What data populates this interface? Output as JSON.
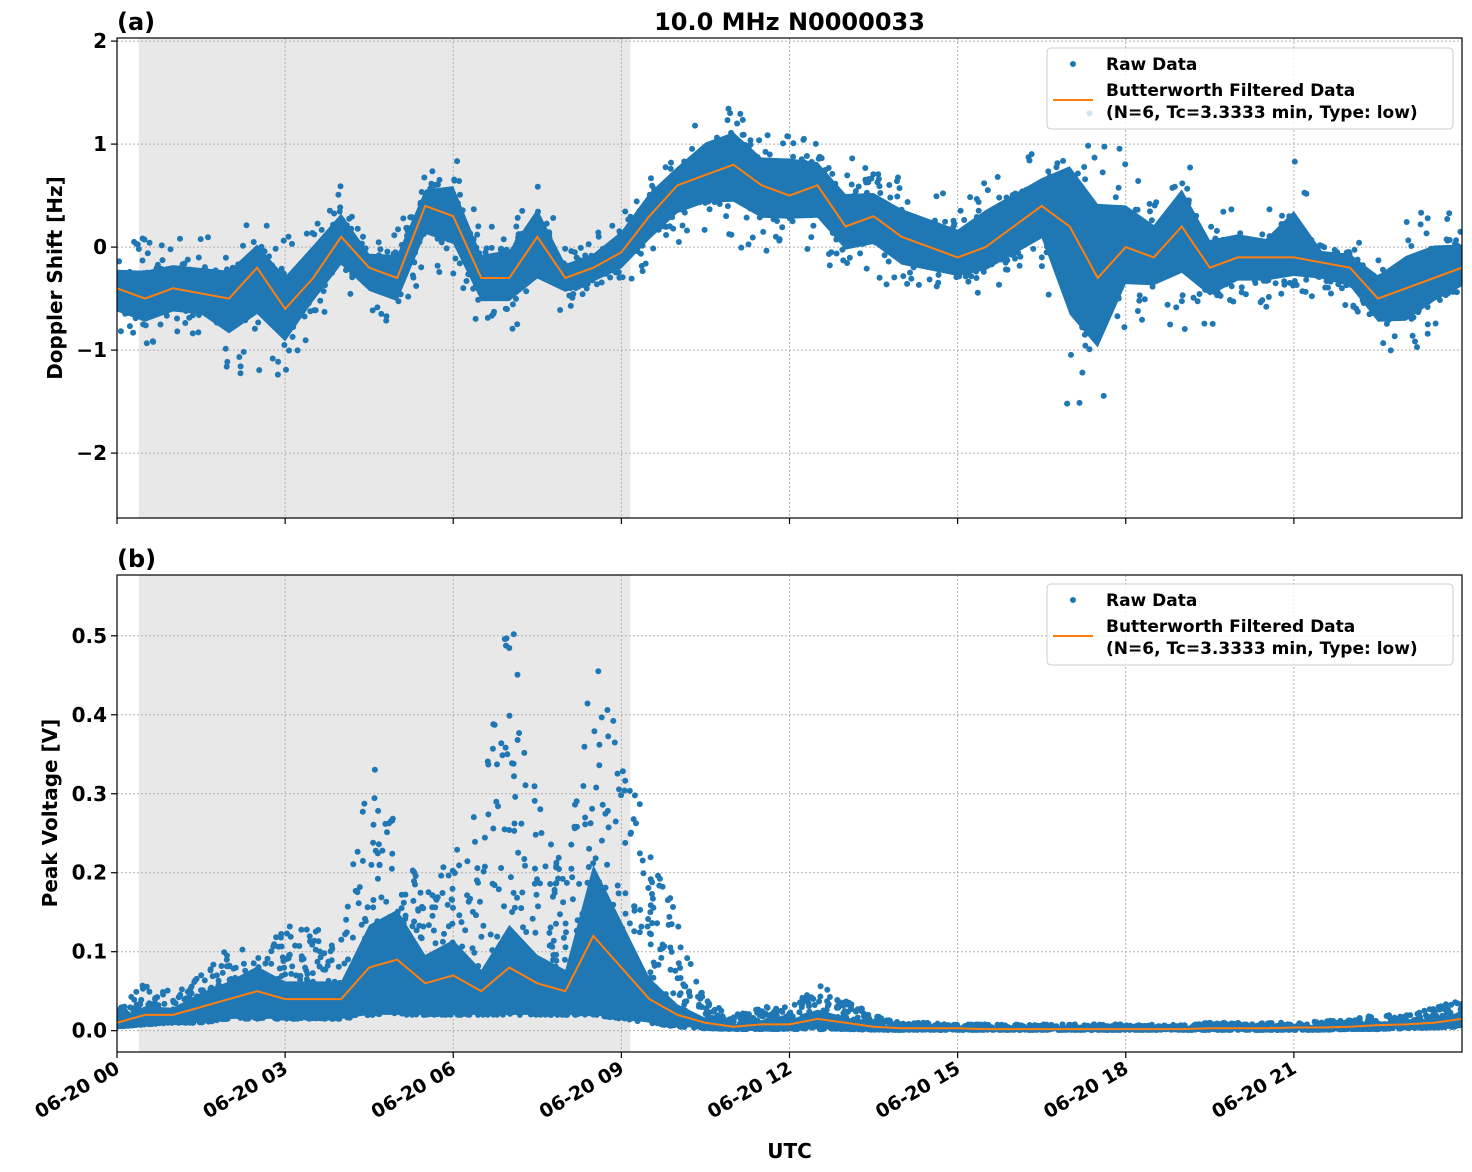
{
  "chart_data": [
    {
      "type": "scatter",
      "panel_label": "(a)",
      "title": "10.0 MHz N0000033",
      "xlabel": "",
      "ylabel": "Doppler Shift [Hz]",
      "xlim_hours": [
        0,
        24
      ],
      "ylim": [
        -2.63,
        2.03
      ],
      "yticks": [
        2,
        1,
        0,
        -1,
        -2
      ],
      "ytick_labels": [
        "2",
        "1",
        "0",
        "−1",
        "−2"
      ],
      "grid": true,
      "legend_placement": "upper-right",
      "shaded_interval_hours": [
        0.39,
        9.16
      ],
      "x_hours": [
        0,
        0.5,
        1,
        1.5,
        2,
        2.5,
        3,
        3.5,
        4,
        4.5,
        5,
        5.5,
        6,
        6.5,
        7,
        7.5,
        8,
        8.5,
        9,
        9.5,
        10,
        10.5,
        11,
        11.5,
        12,
        12.5,
        13,
        13.5,
        14,
        14.5,
        15,
        15.5,
        16,
        16.5,
        17,
        17.5,
        18,
        18.5,
        19,
        19.5,
        20,
        20.5,
        21,
        21.5,
        22,
        22.5,
        23,
        23.5,
        24
      ],
      "series": [
        {
          "name": "Raw Data",
          "kind": "scatter",
          "color": "#1f77b4",
          "low": [
            -0.9,
            -1.0,
            -0.9,
            -0.9,
            -1.25,
            -1.2,
            -1.3,
            -0.8,
            -0.5,
            -0.7,
            -0.8,
            -0.2,
            -0.3,
            -0.8,
            -0.8,
            -0.8,
            -0.6,
            -0.5,
            -0.4,
            -0.2,
            0.0,
            0.1,
            0.0,
            -0.1,
            0.0,
            -0.1,
            -0.3,
            -0.3,
            -0.5,
            -0.5,
            -0.5,
            -0.5,
            -0.4,
            -0.3,
            -1.7,
            -1.8,
            -0.8,
            -0.7,
            -0.8,
            -0.8,
            -0.6,
            -0.6,
            -0.5,
            -0.5,
            -0.6,
            -1.0,
            -1.1,
            -0.8,
            -0.6
          ],
          "high": [
            0.0,
            0.1,
            0.1,
            0.1,
            0.1,
            0.3,
            0.1,
            0.4,
            0.6,
            0.1,
            0.2,
            0.75,
            0.95,
            0.2,
            0.3,
            0.7,
            0.0,
            0.1,
            0.4,
            0.8,
            1.0,
            1.4,
            1.5,
            1.2,
            1.3,
            1.1,
            0.9,
            0.8,
            0.7,
            0.6,
            0.5,
            0.8,
            0.9,
            1.0,
            1.5,
            1.3,
            0.9,
            0.6,
            1.0,
            0.4,
            0.4,
            0.3,
            0.9,
            0.1,
            0.1,
            0.0,
            0.3,
            0.4,
            0.3
          ]
        },
        {
          "name": "Butterworth Filtered Data\n(N=6, Tc=3.3333 min, Type: low)",
          "kind": "line",
          "color": "#ff7f0e",
          "values": [
            -0.4,
            -0.5,
            -0.4,
            -0.45,
            -0.5,
            -0.2,
            -0.6,
            -0.3,
            0.1,
            -0.2,
            -0.3,
            0.4,
            0.3,
            -0.3,
            -0.3,
            0.1,
            -0.3,
            -0.2,
            -0.05,
            0.3,
            0.6,
            0.7,
            0.8,
            0.6,
            0.5,
            0.6,
            0.2,
            0.3,
            0.1,
            0.0,
            -0.1,
            0.0,
            0.2,
            0.4,
            0.2,
            -0.3,
            0.0,
            -0.1,
            0.2,
            -0.2,
            -0.1,
            -0.1,
            -0.1,
            -0.15,
            -0.2,
            -0.5,
            -0.4,
            -0.3,
            -0.2
          ]
        }
      ]
    },
    {
      "type": "scatter",
      "panel_label": "(b)",
      "title": "",
      "xlabel": "UTC",
      "ylabel": "Peak Voltage [V]",
      "xlim_hours": [
        0,
        24
      ],
      "ylim": [
        -0.027,
        0.577
      ],
      "yticks": [
        0.0,
        0.1,
        0.2,
        0.3,
        0.4,
        0.5
      ],
      "ytick_labels": [
        "0.0",
        "0.1",
        "0.2",
        "0.3",
        "0.4",
        "0.5"
      ],
      "xtick_hours": [
        0,
        3,
        6,
        9,
        12,
        15,
        18,
        21
      ],
      "xtick_labels": [
        "06-20 00",
        "06-20 03",
        "06-20 06",
        "06-20 09",
        "06-20 12",
        "06-20 15",
        "06-20 18",
        "06-20 21"
      ],
      "grid": true,
      "legend_placement": "upper-right",
      "shaded_interval_hours": [
        0.39,
        9.16
      ],
      "x_hours": [
        0,
        0.5,
        1,
        1.5,
        2,
        2.5,
        3,
        3.5,
        4,
        4.5,
        5,
        5.5,
        6,
        6.5,
        7,
        7.5,
        8,
        8.5,
        9,
        9.5,
        10,
        10.5,
        11,
        11.5,
        12,
        12.5,
        13,
        13.5,
        14,
        14.5,
        15,
        15.5,
        16,
        16.5,
        17,
        17.5,
        18,
        18.5,
        19,
        19.5,
        20,
        20.5,
        21,
        21.5,
        22,
        22.5,
        23,
        23.5,
        24
      ],
      "series": [
        {
          "name": "Raw Data",
          "kind": "scatter",
          "color": "#1f77b4",
          "low": [
            0.005,
            0.008,
            0.01,
            0.01,
            0.015,
            0.015,
            0.015,
            0.015,
            0.015,
            0.02,
            0.02,
            0.02,
            0.02,
            0.02,
            0.02,
            0.02,
            0.02,
            0.02,
            0.015,
            0.01,
            0.005,
            0.003,
            0.002,
            0.002,
            0.002,
            0.002,
            0.002,
            0.001,
            0.001,
            0.001,
            0.001,
            0.001,
            0.001,
            0.001,
            0.001,
            0.001,
            0.001,
            0.001,
            0.001,
            0.001,
            0.001,
            0.001,
            0.001,
            0.001,
            0.002,
            0.002,
            0.003,
            0.004,
            0.005
          ],
          "high": [
            0.03,
            0.06,
            0.05,
            0.07,
            0.11,
            0.1,
            0.14,
            0.13,
            0.12,
            0.37,
            0.26,
            0.2,
            0.22,
            0.3,
            0.55,
            0.3,
            0.2,
            0.48,
            0.38,
            0.25,
            0.14,
            0.04,
            0.02,
            0.03,
            0.03,
            0.06,
            0.04,
            0.02,
            0.01,
            0.01,
            0.008,
            0.008,
            0.008,
            0.008,
            0.008,
            0.008,
            0.008,
            0.008,
            0.008,
            0.01,
            0.01,
            0.01,
            0.01,
            0.012,
            0.015,
            0.02,
            0.02,
            0.03,
            0.04
          ]
        },
        {
          "name": "Butterworth Filtered Data\n(N=6, Tc=3.3333 min, Type: low)",
          "kind": "line",
          "color": "#ff7f0e",
          "values": [
            0.01,
            0.02,
            0.02,
            0.03,
            0.04,
            0.05,
            0.04,
            0.04,
            0.04,
            0.08,
            0.09,
            0.06,
            0.07,
            0.05,
            0.08,
            0.06,
            0.05,
            0.12,
            0.08,
            0.04,
            0.02,
            0.01,
            0.005,
            0.008,
            0.008,
            0.015,
            0.01,
            0.005,
            0.003,
            0.003,
            0.003,
            0.002,
            0.002,
            0.002,
            0.002,
            0.002,
            0.002,
            0.002,
            0.002,
            0.003,
            0.003,
            0.003,
            0.004,
            0.004,
            0.005,
            0.007,
            0.008,
            0.01,
            0.015
          ]
        }
      ]
    }
  ],
  "legend": {
    "raw_label": "Raw Data",
    "filtered_line1": "Butterworth Filtered Data",
    "filtered_line2": "(N=6, Tc=3.3333 min, Type: low)"
  },
  "colors": {
    "raw": "#1f77b4",
    "filtered": "#ff7f0e",
    "shade": "#e8e8e8",
    "grid": "#b0b0b0"
  }
}
